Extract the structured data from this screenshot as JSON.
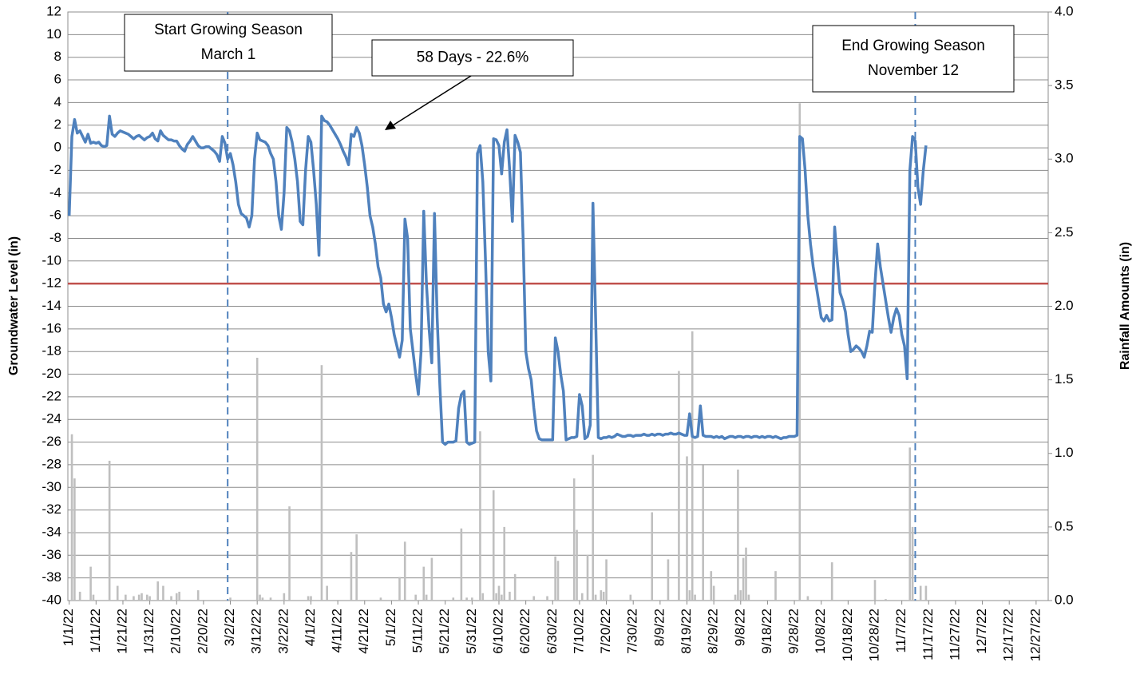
{
  "chart_data": {
    "type": "bar-line",
    "y_label": "Groundwater Level (in)",
    "y2_label": "Rainfall Amounts (in)",
    "categories": [
      "1/1/22",
      null,
      null,
      null,
      null,
      null,
      null,
      null,
      null,
      null,
      "1/11/22",
      null,
      null,
      null,
      null,
      null,
      null,
      null,
      null,
      null,
      "1/21/22",
      null,
      null,
      null,
      null,
      null,
      null,
      null,
      null,
      null,
      "1/31/22",
      null,
      null,
      null,
      null,
      null,
      null,
      null,
      null,
      null,
      "2/10/22",
      null,
      null,
      null,
      null,
      null,
      null,
      null,
      null,
      null,
      "2/20/22",
      null,
      null,
      null,
      null,
      null,
      null,
      null,
      null,
      null,
      "3/2/22",
      null,
      null,
      null,
      null,
      null,
      null,
      null,
      null,
      null,
      "3/12/22",
      null,
      null,
      null,
      null,
      null,
      null,
      null,
      null,
      null,
      "3/22/22",
      null,
      null,
      null,
      null,
      null,
      null,
      null,
      null,
      null,
      "4/1/22",
      null,
      null,
      null,
      null,
      null,
      null,
      null,
      null,
      null,
      "4/11/22",
      null,
      null,
      null,
      null,
      null,
      null,
      null,
      null,
      null,
      "4/21/22",
      null,
      null,
      null,
      null,
      null,
      null,
      null,
      null,
      null,
      "5/1/22",
      null,
      null,
      null,
      null,
      null,
      null,
      null,
      null,
      null,
      "5/11/22",
      null,
      null,
      null,
      null,
      null,
      null,
      null,
      null,
      null,
      "5/21/22",
      null,
      null,
      null,
      null,
      null,
      null,
      null,
      null,
      null,
      "5/31/22",
      null,
      null,
      null,
      null,
      null,
      null,
      null,
      null,
      null,
      "6/10/22",
      null,
      null,
      null,
      null,
      null,
      null,
      null,
      null,
      null,
      "6/20/22",
      null,
      null,
      null,
      null,
      null,
      null,
      null,
      null,
      null,
      "6/30/22",
      null,
      null,
      null,
      null,
      null,
      null,
      null,
      null,
      null,
      "7/10/22",
      null,
      null,
      null,
      null,
      null,
      null,
      null,
      null,
      null,
      "7/20/22",
      null,
      null,
      null,
      null,
      null,
      null,
      null,
      null,
      null,
      "7/30/22",
      null,
      null,
      null,
      null,
      null,
      null,
      null,
      null,
      null,
      "8/9/22",
      null,
      null,
      null,
      null,
      null,
      null,
      null,
      null,
      null,
      "8/19/22",
      null,
      null,
      null,
      null,
      null,
      null,
      null,
      null,
      null,
      "8/29/22",
      null,
      null,
      null,
      null,
      null,
      null,
      null,
      null,
      null,
      "9/8/22",
      null,
      null,
      null,
      null,
      null,
      null,
      null,
      null,
      null,
      "9/18/22",
      null,
      null,
      null,
      null,
      null,
      null,
      null,
      null,
      null,
      "9/28/22",
      null,
      null,
      null,
      null,
      null,
      null,
      null,
      null,
      null,
      "10/8/22",
      null,
      null,
      null,
      null,
      null,
      null,
      null,
      null,
      null,
      "10/18/22",
      null,
      null,
      null,
      null,
      null,
      null,
      null,
      null,
      null,
      "10/28/22",
      null,
      null,
      null,
      null,
      null,
      null,
      null,
      null,
      null,
      "11/7/22",
      null,
      null,
      null,
      null,
      null,
      null,
      null,
      null,
      null,
      "11/17/22",
      null,
      null,
      null,
      null,
      null,
      null,
      null,
      null,
      null,
      "11/27/22",
      null,
      null,
      null,
      null,
      null,
      null,
      null,
      null,
      null,
      "12/7/22",
      null,
      null,
      null,
      null,
      null,
      null,
      null,
      null,
      null,
      "12/17/22",
      null,
      null,
      null,
      null,
      null,
      null,
      null,
      null,
      null,
      "12/27/22",
      null,
      null,
      null,
      null
    ],
    "series": [
      {
        "type": "line",
        "color": "#4f81bd",
        "values": [
          -6,
          1,
          2.5,
          1.3,
          1.5,
          1,
          0.5,
          1.2,
          0.4,
          0.5,
          0.4,
          0.5,
          0.2,
          0.1,
          0.2,
          2.8,
          1.2,
          1.0,
          1.3,
          1.5,
          1.4,
          1.3,
          1.2,
          1.0,
          0.8,
          1.0,
          1.1,
          0.9,
          0.7,
          0.9,
          1.0,
          1.3,
          0.8,
          0.6,
          1.5,
          1.1,
          0.9,
          0.7,
          0.7,
          0.6,
          0.6,
          0.2,
          -0.1,
          -0.3,
          0.3,
          0.6,
          1.0,
          0.6,
          0.2,
          0,
          0,
          0.1,
          0.1,
          -0.1,
          -0.3,
          -0.6,
          -1.2,
          1,
          0.4,
          -1,
          -0.5,
          -1.5,
          -3,
          -5,
          -5.8,
          -6,
          -6.2,
          -7,
          -6,
          -1,
          1.3,
          0.7,
          0.6,
          0.5,
          0.2,
          -0.5,
          -1,
          -3,
          -6,
          -7.2,
          -4,
          1.8,
          1.5,
          0.5,
          -1,
          -3,
          -6.5,
          -6.8,
          -2,
          1,
          0.5,
          -2,
          -5,
          -9.5,
          2.8,
          2.4,
          2.3,
          2,
          1.6,
          1.2,
          0.8,
          0.3,
          -0.3,
          -0.8,
          -1.5,
          1.2,
          1,
          1.8,
          1.3,
          0.2,
          -1.5,
          -3.5,
          -6,
          -7,
          -8.5,
          -10.5,
          -11.5,
          -13.8,
          -14.5,
          -13.8,
          -15,
          -16.5,
          -17.5,
          -18.5,
          -17,
          -6.3,
          -8,
          -16,
          -18,
          -20,
          -21.8,
          -18,
          -5.6,
          -12,
          -16,
          -19,
          -5.8,
          -15,
          -21,
          -26,
          -26.2,
          -26,
          -26,
          -26,
          -25.9,
          -23,
          -21.8,
          -21.5,
          -26,
          -26.2,
          -26.1,
          -26,
          -0.5,
          0.2,
          -3,
          -10,
          -18,
          -20.6,
          0.8,
          0.7,
          0.2,
          -2.3,
          0.5,
          1.6,
          -2,
          -6.5,
          1.1,
          0.5,
          -0.4,
          -8,
          -18,
          -19.5,
          -20.5,
          -23,
          -25,
          -25.7,
          -25.8,
          -25.8,
          -25.8,
          -25.8,
          -25.8,
          -16.8,
          -18,
          -20,
          -21.5,
          -25.8,
          -25.7,
          -25.6,
          -25.6,
          -25.5,
          -21.8,
          -22.8,
          -25.7,
          -25.5,
          -24.5,
          -4.9,
          -15,
          -25.6,
          -25.7,
          -25.6,
          -25.6,
          -25.5,
          -25.6,
          -25.5,
          -25.3,
          -25.4,
          -25.5,
          -25.5,
          -25.4,
          -25.4,
          -25.5,
          -25.4,
          -25.4,
          -25.4,
          -25.3,
          -25.4,
          -25.4,
          -25.3,
          -25.4,
          -25.3,
          -25.3,
          -25.4,
          -25.3,
          -25.3,
          -25.2,
          -25.3,
          -25.3,
          -25.2,
          -25.3,
          -25.4,
          -25.4,
          -23.5,
          -25.5,
          -25.6,
          -25.5,
          -22.8,
          -25.4,
          -25.5,
          -25.5,
          -25.5,
          -25.6,
          -25.5,
          -25.6,
          -25.5,
          -25.7,
          -25.6,
          -25.5,
          -25.5,
          -25.6,
          -25.5,
          -25.5,
          -25.6,
          -25.5,
          -25.5,
          -25.6,
          -25.5,
          -25.5,
          -25.6,
          -25.5,
          -25.6,
          -25.5,
          -25.5,
          -25.6,
          -25.5,
          -25.6,
          -25.7,
          -25.6,
          -25.6,
          -25.5,
          -25.5,
          -25.5,
          -25.4,
          1,
          0.8,
          -2,
          -6,
          -8.5,
          -10.5,
          -12,
          -13.5,
          -15,
          -15.3,
          -14.8,
          -15.3,
          -15.2,
          -7,
          -10,
          -12.8,
          -13.5,
          -14.5,
          -16.5,
          -18,
          -17.8,
          -17.5,
          -17.7,
          -18,
          -18.5,
          -17.5,
          -16.2,
          -16.3,
          -12,
          -8.5,
          -10.5,
          -12,
          -13.5,
          -15,
          -16.3,
          -15,
          -14.2,
          -14.8,
          -16.5,
          -17.5,
          -20.4,
          -2,
          1,
          0.6,
          -3.5,
          -5,
          -2,
          0.2,
          null,
          null,
          null,
          null,
          null,
          null,
          null,
          null,
          null,
          null,
          null,
          null,
          null,
          null,
          null,
          null,
          null,
          null,
          null,
          null,
          null,
          null,
          null,
          null,
          null,
          null,
          null,
          null,
          null,
          null,
          null,
          null,
          null,
          null,
          null,
          null,
          null,
          null,
          null,
          null,
          null,
          null,
          null,
          null,
          null
        ]
      },
      {
        "type": "bar",
        "axis": "y2",
        "color": "#bfbfbf",
        "values": [
          0,
          1.13,
          0.83,
          0,
          0.06,
          0,
          0,
          0,
          0.23,
          0.04,
          0,
          0,
          0,
          0,
          0,
          0.95,
          0,
          0,
          0.1,
          0,
          0,
          0.04,
          0,
          0,
          0.03,
          0,
          0.04,
          0.05,
          0,
          0.04,
          0.03,
          0,
          0,
          0.13,
          0,
          0.1,
          0,
          0,
          0.03,
          0,
          0.05,
          0.06,
          0,
          0,
          0,
          0,
          0,
          0,
          0.07,
          0,
          0,
          0,
          0,
          0,
          0,
          0,
          0,
          0,
          0,
          0,
          0.02,
          0,
          0,
          0,
          0,
          0,
          0,
          0,
          0,
          0,
          1.65,
          0.04,
          0.02,
          0,
          0,
          0.02,
          0,
          0,
          0,
          0,
          0.05,
          0,
          0.64,
          0,
          0,
          0,
          0,
          0,
          0,
          0.03,
          0.03,
          0,
          0,
          0,
          1.6,
          0,
          0.1,
          0,
          0,
          0,
          0,
          0,
          0,
          0,
          0,
          0.33,
          0,
          0.45,
          0,
          0,
          0,
          0,
          0,
          0,
          0,
          0,
          0.02,
          0,
          0,
          0,
          0,
          0,
          0,
          0.16,
          0,
          0.4,
          0,
          0,
          0,
          0.04,
          0,
          0,
          0.23,
          0.04,
          0,
          0.29,
          0,
          0,
          0,
          0,
          0,
          0,
          0,
          0.02,
          0,
          0,
          0.49,
          0,
          0.02,
          0,
          0.02,
          0,
          0,
          1.15,
          0.05,
          0,
          0,
          0,
          0.75,
          0.05,
          0.1,
          0.04,
          0.5,
          0,
          0.06,
          0,
          0.18,
          0,
          0,
          0,
          0,
          0,
          0,
          0.03,
          0,
          0,
          0,
          0,
          0.03,
          0,
          0,
          0.3,
          0.27,
          0,
          0,
          0,
          0,
          0,
          0.83,
          0.48,
          0,
          0.05,
          0,
          0.31,
          0,
          0.99,
          0.04,
          0,
          0.07,
          0.06,
          0.28,
          0,
          0,
          0,
          0,
          0,
          0,
          0,
          0,
          0.04,
          0,
          0,
          0,
          0,
          0,
          0,
          0,
          0.6,
          0,
          0,
          0,
          0,
          0,
          0.28,
          0,
          0,
          0,
          1.56,
          0,
          0,
          0.98,
          0.07,
          1.83,
          0.04,
          0,
          0,
          0.92,
          0,
          0,
          0.2,
          0.1,
          0,
          0,
          0,
          0,
          0,
          0,
          0,
          0.04,
          0.89,
          0.07,
          0.29,
          0.36,
          0.04,
          0,
          0,
          0,
          0,
          0,
          0,
          0,
          0,
          0,
          0.2,
          0,
          0,
          0,
          0,
          0,
          0,
          0,
          0,
          3.38,
          0,
          0,
          0.03,
          0,
          0,
          0,
          0,
          0,
          0,
          0,
          0,
          0.26,
          0,
          0,
          0,
          0,
          0,
          0,
          0,
          0,
          0,
          0,
          0,
          0,
          0,
          0,
          0,
          0.14,
          0,
          0,
          0,
          0.01,
          0,
          0,
          0,
          0,
          0,
          0,
          0,
          0,
          1.04,
          0.5,
          0,
          0,
          0.1,
          0,
          0.1,
          0,
          0,
          0,
          0,
          0,
          0,
          0,
          0,
          0,
          0,
          0,
          0,
          0,
          0,
          0,
          0,
          0,
          0,
          0,
          0,
          0,
          0,
          0,
          0,
          0,
          0,
          0,
          0,
          0,
          0,
          0,
          0,
          0,
          0,
          0,
          0,
          0,
          0,
          0,
          0,
          0,
          0,
          0,
          0,
          0
        ]
      }
    ],
    "reference_line": {
      "value": -12,
      "color": "#c0504d"
    },
    "annotations": [
      {
        "text": [
          "Start Growing Season",
          "March 1"
        ],
        "at": 59
      },
      {
        "text": [
          "58 Days - 22.6%"
        ]
      },
      {
        "text": [
          "End Growing Season",
          "November 12"
        ],
        "at": 315
      }
    ],
    "ylim": [
      -40,
      12
    ],
    "yticks": [
      -40,
      -38,
      -36,
      -34,
      -32,
      -30,
      -28,
      -26,
      -24,
      -22,
      -20,
      -18,
      -16,
      -14,
      -12,
      -10,
      -8,
      -6,
      -4,
      -2,
      0,
      2,
      4,
      6,
      8,
      10,
      12
    ],
    "y2lim": [
      0,
      4
    ],
    "y2ticks": [
      {
        "value": 0,
        "label": "0.0"
      },
      0.5,
      {
        "value": 1,
        "label": "1.0"
      },
      1.5,
      {
        "value": 2,
        "label": "2.0"
      },
      2.5,
      {
        "value": 3,
        "label": "3.0"
      },
      3.5,
      {
        "value": 4,
        "label": "4.0"
      }
    ],
    "grid": true
  }
}
